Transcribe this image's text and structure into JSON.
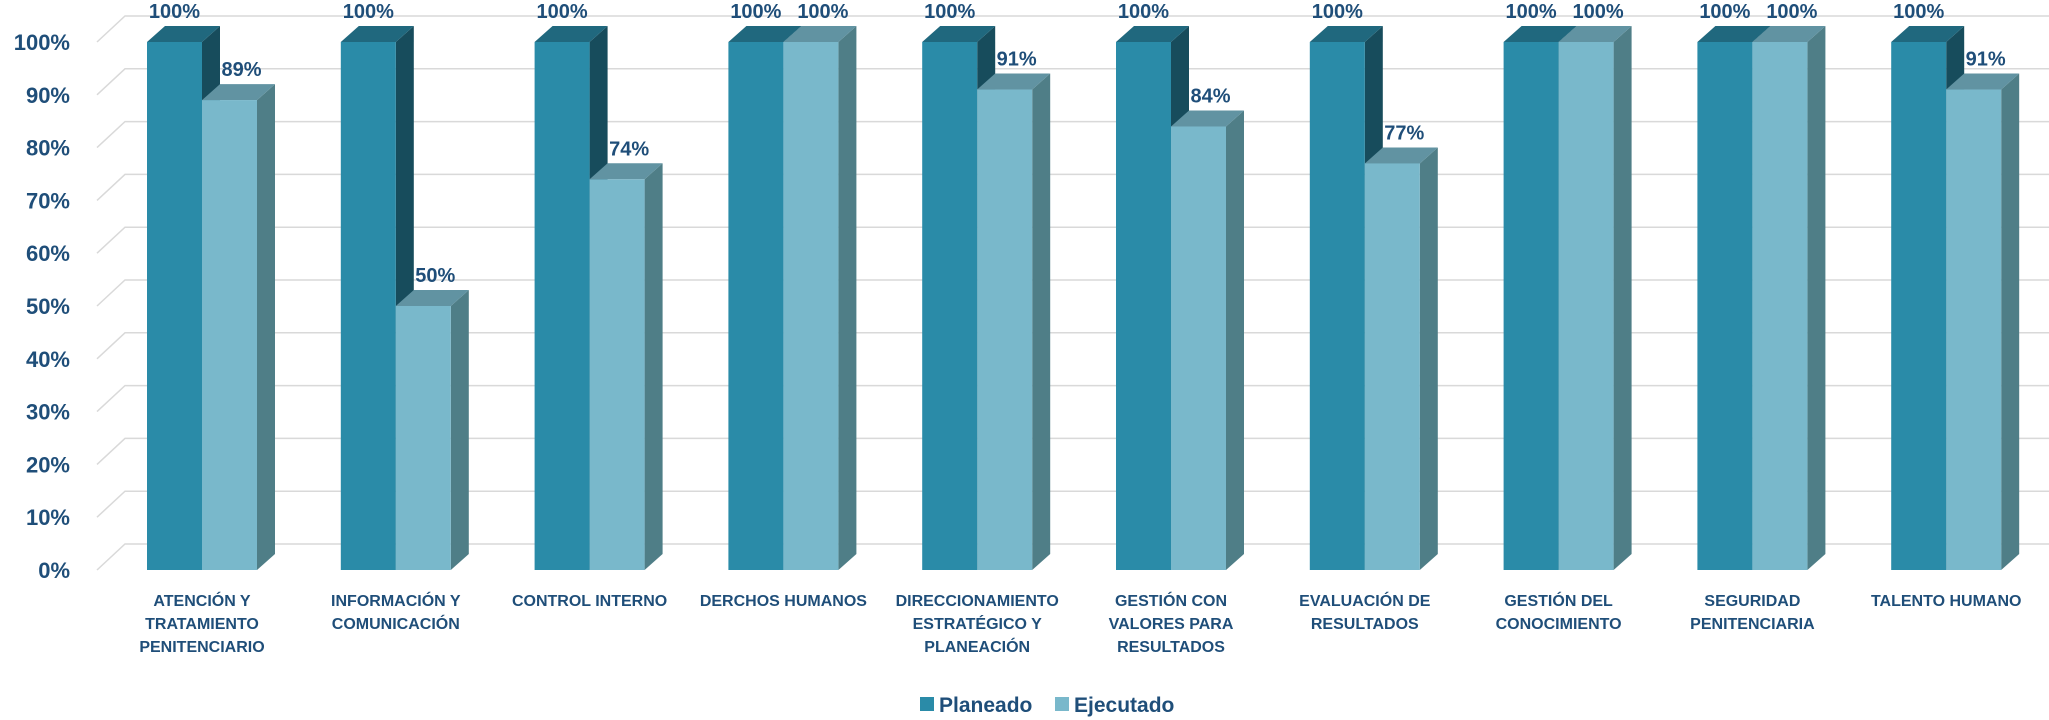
{
  "chart_data": {
    "type": "bar",
    "title": "",
    "xlabel": "",
    "ylabel": "",
    "ylim": [
      0,
      100
    ],
    "y_ticks": [
      "0%",
      "10%",
      "20%",
      "30%",
      "40%",
      "50%",
      "60%",
      "70%",
      "80%",
      "90%",
      "100%"
    ],
    "grid": true,
    "legend_position": "bottom",
    "categories": [
      [
        "ATENCIÓN Y",
        "TRATAMIENTO",
        "PENITENCIARIO"
      ],
      [
        "INFORMACIÓN Y",
        "COMUNICACIÓN"
      ],
      [
        "CONTROL INTERNO"
      ],
      [
        "DERCHOS HUMANOS"
      ],
      [
        "DIRECCIONAMIENTO",
        "ESTRATÉGICO Y",
        "PLANEACIÓN"
      ],
      [
        "GESTIÓN CON",
        "VALORES PARA",
        "RESULTADOS"
      ],
      [
        "EVALUACIÓN DE",
        "RESULTADOS"
      ],
      [
        "GESTIÓN DEL",
        "CONOCIMIENTO"
      ],
      [
        "SEGURIDAD",
        "PENITENCIARIA"
      ],
      [
        "TALENTO HUMANO"
      ]
    ],
    "series": [
      {
        "name": "Planeado",
        "color": "#2A8BA8",
        "values": [
          100,
          100,
          100,
          100,
          100,
          100,
          100,
          100,
          100,
          100
        ],
        "labels": [
          "100%",
          "100%",
          "100%",
          "100%",
          "100%",
          "100%",
          "100%",
          "100%",
          "100%",
          "100%"
        ]
      },
      {
        "name": "Ejecutado",
        "color": "#79B8CB",
        "values": [
          89,
          50,
          74,
          100,
          91,
          84,
          77,
          100,
          100,
          91
        ],
        "labels": [
          "89%",
          "50%",
          "74%",
          "100%",
          "91%",
          "84%",
          "77%",
          "100%",
          "100%",
          "91%"
        ]
      }
    ]
  }
}
